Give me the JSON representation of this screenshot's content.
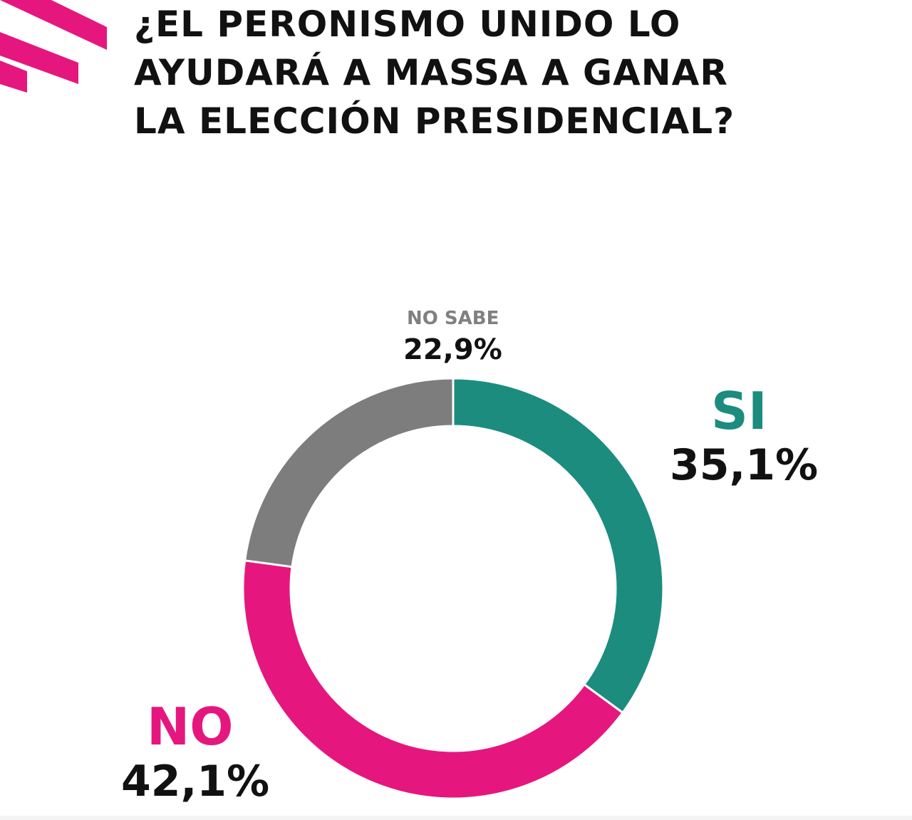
{
  "title": {
    "line1": "¿EL PERONISMO UNIDO LO",
    "line2": "AYUDARÁ A MASSA A GANAR",
    "line3": "LA ELECCIÓN PRESIDENCIAL?"
  },
  "decoration": {
    "color": "#e5177e",
    "icon": "pink-stripes-logo"
  },
  "chart_data": {
    "type": "pie",
    "variant": "donut",
    "title": "¿EL PERONISMO UNIDO LO AYUDARÁ A MASSA A GANAR LA ELECCIÓN PRESIDENCIAL?",
    "slices": [
      {
        "label": "SI",
        "value": 35.1,
        "display": "35,1%",
        "color": "#1b8c7e"
      },
      {
        "label": "NO",
        "value": 42.1,
        "display": "42,1%",
        "color": "#e5177e"
      },
      {
        "label": "NO SABE",
        "value": 22.9,
        "display": "22,9%",
        "color": "#7d7d7e"
      }
    ],
    "start_angle": "12 o'clock",
    "direction": "clockwise",
    "legend": "none"
  }
}
